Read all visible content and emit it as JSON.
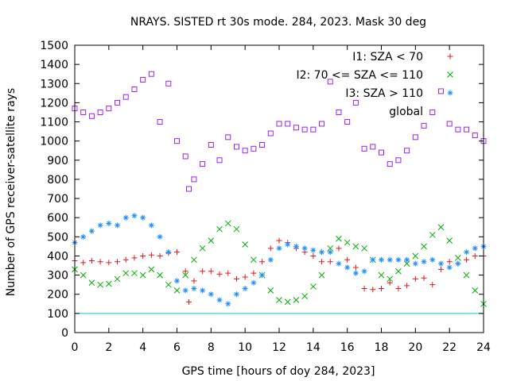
{
  "chart_data": {
    "type": "scatter",
    "title": "NRAYS. SISTED rt 30s mode. 284, 2023. Mask 30 deg",
    "xlabel": "GPS time [hours of doy 284, 2023]",
    "ylabel": "Number of GPS receiver-satellite rays",
    "xlim": [
      0,
      24
    ],
    "ylim": [
      0,
      1500
    ],
    "xticks": [
      "0",
      "2",
      "4",
      "6",
      "8",
      "10",
      "12",
      "14",
      "16",
      "18",
      "20",
      "22",
      "24"
    ],
    "yticks": [
      "0",
      "100",
      "200",
      "300",
      "400",
      "500",
      "600",
      "700",
      "800",
      "900",
      "1000",
      "1100",
      "1200",
      "1300",
      "1400",
      "1500"
    ],
    "legend_position": "top-right",
    "series": [
      {
        "name": "I1: SZA < 70",
        "marker": "+",
        "color": "#e41a1c",
        "points": [
          [
            0,
            375
          ],
          [
            0.5,
            365
          ],
          [
            1,
            375
          ],
          [
            1.5,
            370
          ],
          [
            2,
            365
          ],
          [
            2.5,
            370
          ],
          [
            3,
            380
          ],
          [
            3.5,
            390
          ],
          [
            4,
            400
          ],
          [
            4.5,
            405
          ],
          [
            5,
            400
          ],
          [
            5.5,
            415
          ],
          [
            6,
            420
          ],
          [
            6.5,
            320
          ],
          [
            6.7,
            160
          ],
          [
            7,
            270
          ],
          [
            7.5,
            320
          ],
          [
            8,
            320
          ],
          [
            8.5,
            305
          ],
          [
            9,
            310
          ],
          [
            9.5,
            280
          ],
          [
            10,
            290
          ],
          [
            10.5,
            310
          ],
          [
            11,
            370
          ],
          [
            11.5,
            440
          ],
          [
            12,
            480
          ],
          [
            12.5,
            470
          ],
          [
            13,
            440
          ],
          [
            13.5,
            420
          ],
          [
            14,
            400
          ],
          [
            14.5,
            370
          ],
          [
            15,
            370
          ],
          [
            15.5,
            440
          ],
          [
            16,
            380
          ],
          [
            16.5,
            340
          ],
          [
            17,
            230
          ],
          [
            17.5,
            225
          ],
          [
            18,
            230
          ],
          [
            18.5,
            260
          ],
          [
            19,
            230
          ],
          [
            19.5,
            245
          ],
          [
            20,
            280
          ],
          [
            20.5,
            285
          ],
          [
            21,
            250
          ],
          [
            21.5,
            330
          ],
          [
            22,
            370
          ],
          [
            22.5,
            360
          ],
          [
            23,
            380
          ],
          [
            23.5,
            400
          ],
          [
            24,
            400
          ]
        ]
      },
      {
        "name": "I2: 70 <= SZA <= 110",
        "marker": "x",
        "color": "#00b000",
        "points": [
          [
            0,
            330
          ],
          [
            0.5,
            300
          ],
          [
            1,
            260
          ],
          [
            1.5,
            250
          ],
          [
            2,
            255
          ],
          [
            2.5,
            280
          ],
          [
            3,
            310
          ],
          [
            3.5,
            310
          ],
          [
            4,
            300
          ],
          [
            4.5,
            330
          ],
          [
            5,
            300
          ],
          [
            5.5,
            250
          ],
          [
            6,
            220
          ],
          [
            6.5,
            300
          ],
          [
            7,
            380
          ],
          [
            7.5,
            440
          ],
          [
            8,
            480
          ],
          [
            8.5,
            540
          ],
          [
            9,
            570
          ],
          [
            9.5,
            540
          ],
          [
            10,
            460
          ],
          [
            10.5,
            380
          ],
          [
            11,
            300
          ],
          [
            11.5,
            220
          ],
          [
            12,
            170
          ],
          [
            12.5,
            160
          ],
          [
            13,
            170
          ],
          [
            13.5,
            190
          ],
          [
            14,
            240
          ],
          [
            14.5,
            300
          ],
          [
            15,
            440
          ],
          [
            15.5,
            490
          ],
          [
            16,
            470
          ],
          [
            16.5,
            450
          ],
          [
            17,
            440
          ],
          [
            17.5,
            380
          ],
          [
            18,
            300
          ],
          [
            18.5,
            280
          ],
          [
            19,
            320
          ],
          [
            19.5,
            360
          ],
          [
            20,
            400
          ],
          [
            20.5,
            450
          ],
          [
            21,
            510
          ],
          [
            21.5,
            550
          ],
          [
            22,
            480
          ],
          [
            22.5,
            390
          ],
          [
            23,
            300
          ],
          [
            23.5,
            220
          ],
          [
            24,
            150
          ]
        ]
      },
      {
        "name": "I3: SZA > 110",
        "marker": "*",
        "color": "#1e90ff",
        "points": [
          [
            0,
            470
          ],
          [
            0.5,
            500
          ],
          [
            1,
            530
          ],
          [
            1.5,
            560
          ],
          [
            2,
            570
          ],
          [
            2.5,
            560
          ],
          [
            3,
            600
          ],
          [
            3.5,
            610
          ],
          [
            4,
            600
          ],
          [
            4.5,
            560
          ],
          [
            5,
            500
          ],
          [
            5.5,
            420
          ],
          [
            6,
            270
          ],
          [
            6.5,
            220
          ],
          [
            7,
            230
          ],
          [
            7.5,
            220
          ],
          [
            8,
            200
          ],
          [
            8.5,
            170
          ],
          [
            9,
            150
          ],
          [
            9.5,
            200
          ],
          [
            10,
            230
          ],
          [
            10.5,
            260
          ],
          [
            11,
            300
          ],
          [
            11.5,
            380
          ],
          [
            12,
            440
          ],
          [
            12.5,
            460
          ],
          [
            13,
            450
          ],
          [
            13.5,
            440
          ],
          [
            14,
            430
          ],
          [
            14.5,
            420
          ],
          [
            15,
            420
          ],
          [
            15.5,
            360
          ],
          [
            16,
            340
          ],
          [
            16.5,
            310
          ],
          [
            17,
            320
          ],
          [
            17.5,
            380
          ],
          [
            18,
            380
          ],
          [
            18.5,
            380
          ],
          [
            19,
            380
          ],
          [
            19.5,
            380
          ],
          [
            20,
            360
          ],
          [
            20.5,
            370
          ],
          [
            21,
            380
          ],
          [
            21.5,
            360
          ],
          [
            22,
            340
          ],
          [
            22.5,
            360
          ],
          [
            23,
            420
          ],
          [
            23.5,
            440
          ],
          [
            24,
            450
          ]
        ]
      },
      {
        "name": "global",
        "marker": "square",
        "color": "#a020f0",
        "points": [
          [
            0,
            1170
          ],
          [
            0.5,
            1150
          ],
          [
            1,
            1130
          ],
          [
            1.5,
            1150
          ],
          [
            2,
            1170
          ],
          [
            2.5,
            1200
          ],
          [
            3,
            1230
          ],
          [
            3.5,
            1270
          ],
          [
            4,
            1320
          ],
          [
            4.5,
            1350
          ],
          [
            5,
            1100
          ],
          [
            5.5,
            1300
          ],
          [
            6,
            1000
          ],
          [
            6.5,
            920
          ],
          [
            6.7,
            750
          ],
          [
            7,
            800
          ],
          [
            7.5,
            880
          ],
          [
            8,
            980
          ],
          [
            8.5,
            900
          ],
          [
            9,
            1020
          ],
          [
            9.5,
            970
          ],
          [
            10,
            950
          ],
          [
            10.5,
            960
          ],
          [
            11,
            980
          ],
          [
            11.5,
            1040
          ],
          [
            12,
            1090
          ],
          [
            12.5,
            1090
          ],
          [
            13,
            1070
          ],
          [
            13.5,
            1060
          ],
          [
            14,
            1060
          ],
          [
            14.5,
            1090
          ],
          [
            15,
            1310
          ],
          [
            15.5,
            1150
          ],
          [
            16,
            1100
          ],
          [
            16.5,
            1200
          ],
          [
            17,
            960
          ],
          [
            17.5,
            970
          ],
          [
            18,
            940
          ],
          [
            18.5,
            880
          ],
          [
            19,
            900
          ],
          [
            19.5,
            950
          ],
          [
            20,
            1020
          ],
          [
            20.5,
            1080
          ],
          [
            21,
            1150
          ],
          [
            21.5,
            1260
          ],
          [
            22,
            1090
          ],
          [
            22.5,
            1060
          ],
          [
            23,
            1060
          ],
          [
            23.5,
            1030
          ],
          [
            24,
            1000
          ]
        ]
      },
      {
        "name": "",
        "marker": "line",
        "color": "#00cccc",
        "points": [
          [
            0,
            100
          ],
          [
            24,
            100
          ]
        ]
      }
    ]
  }
}
